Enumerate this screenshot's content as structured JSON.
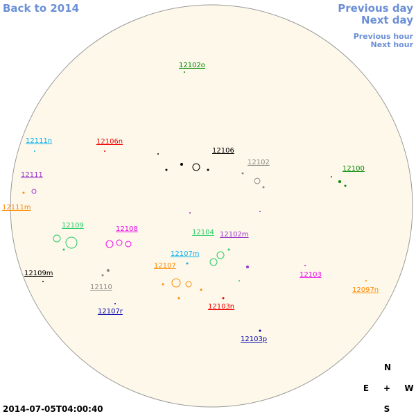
{
  "nav": {
    "back": "Back to 2014",
    "previous_day": "Previous day",
    "next_day": "Next day",
    "previous_hour": "Previous hour",
    "next_hour": "Next hour"
  },
  "regions": [
    "12102o",
    "12106n",
    "12111n",
    "12106",
    "12102",
    "12100",
    "12111",
    "12111m",
    "12109",
    "12108",
    "12104",
    "12102m",
    "12107m",
    "12107",
    "12109m",
    "12103",
    "12110",
    "12097n",
    "12103n",
    "12107r",
    "12103p"
  ],
  "compass": {
    "north": "N",
    "east": "E",
    "center": "+",
    "west": "W",
    "south": "S"
  },
  "timestamp": "2014-07-05T04:00:40"
}
